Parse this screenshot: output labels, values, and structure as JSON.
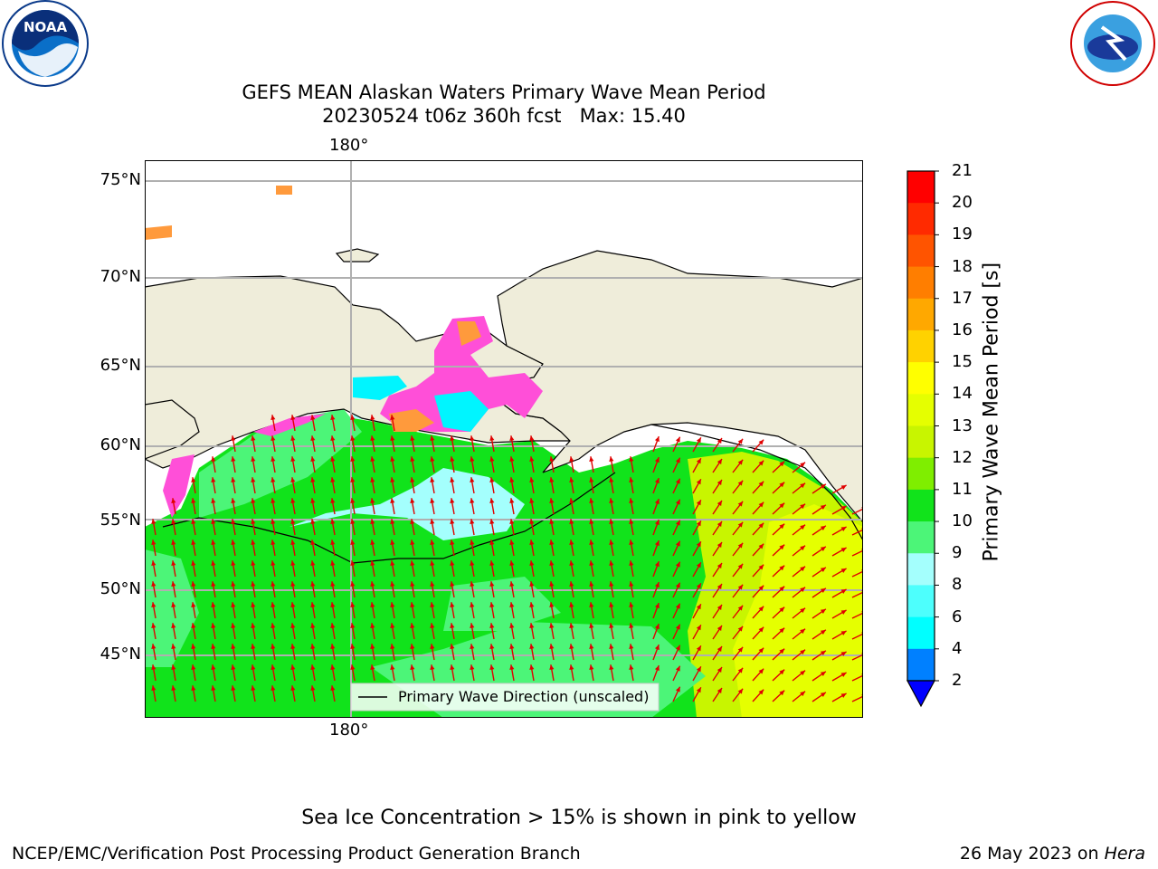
{
  "header": {
    "title_line1": "GEFS MEAN Alaskan Waters Primary Wave Mean Period",
    "title_line2": "20230524 t06z 360h fcst   Max: 15.40"
  },
  "logos": {
    "left": "NOAA",
    "right": "NATIONAL WEATHER SERVICE"
  },
  "map": {
    "lon_label_top": "180°",
    "lon_label_bottom": "180°",
    "lat_labels": [
      "75°N",
      "70°N",
      "65°N",
      "60°N",
      "55°N",
      "50°N",
      "45°N"
    ],
    "legend_text": "Primary Wave Direction (unscaled)",
    "colors": {
      "land": "#efedda",
      "ocean_green": "#11e31b",
      "ocean_yellow": "#d6f50a",
      "light_cyan": "#a4fffd",
      "arrow": "#e00000"
    }
  },
  "colorbar": {
    "title": "Primary Wave Mean Period [s]",
    "ticks": [
      "21",
      "20",
      "19",
      "18",
      "17",
      "16",
      "15",
      "14",
      "13",
      "12",
      "11",
      "10",
      "9",
      "8",
      "6",
      "4",
      "2"
    ],
    "colors": [
      "#ff0000",
      "#ff2a00",
      "#ff5400",
      "#ff7e00",
      "#ffa800",
      "#ffd200",
      "#ffff00",
      "#e5ff00",
      "#c8f500",
      "#7fee00",
      "#11e31b",
      "#4cf578",
      "#a4fffd",
      "#4dfffd",
      "#00ffff",
      "#0080ff",
      "#0000ff"
    ]
  },
  "footer": {
    "ice_note": "Sea Ice Concentration > 15% is shown in pink to yellow",
    "branch": "NCEP/EMC/Verification Post Processing Product Generation Branch",
    "date_prefix": "26 May 2023 on ",
    "machine": "Hera"
  }
}
